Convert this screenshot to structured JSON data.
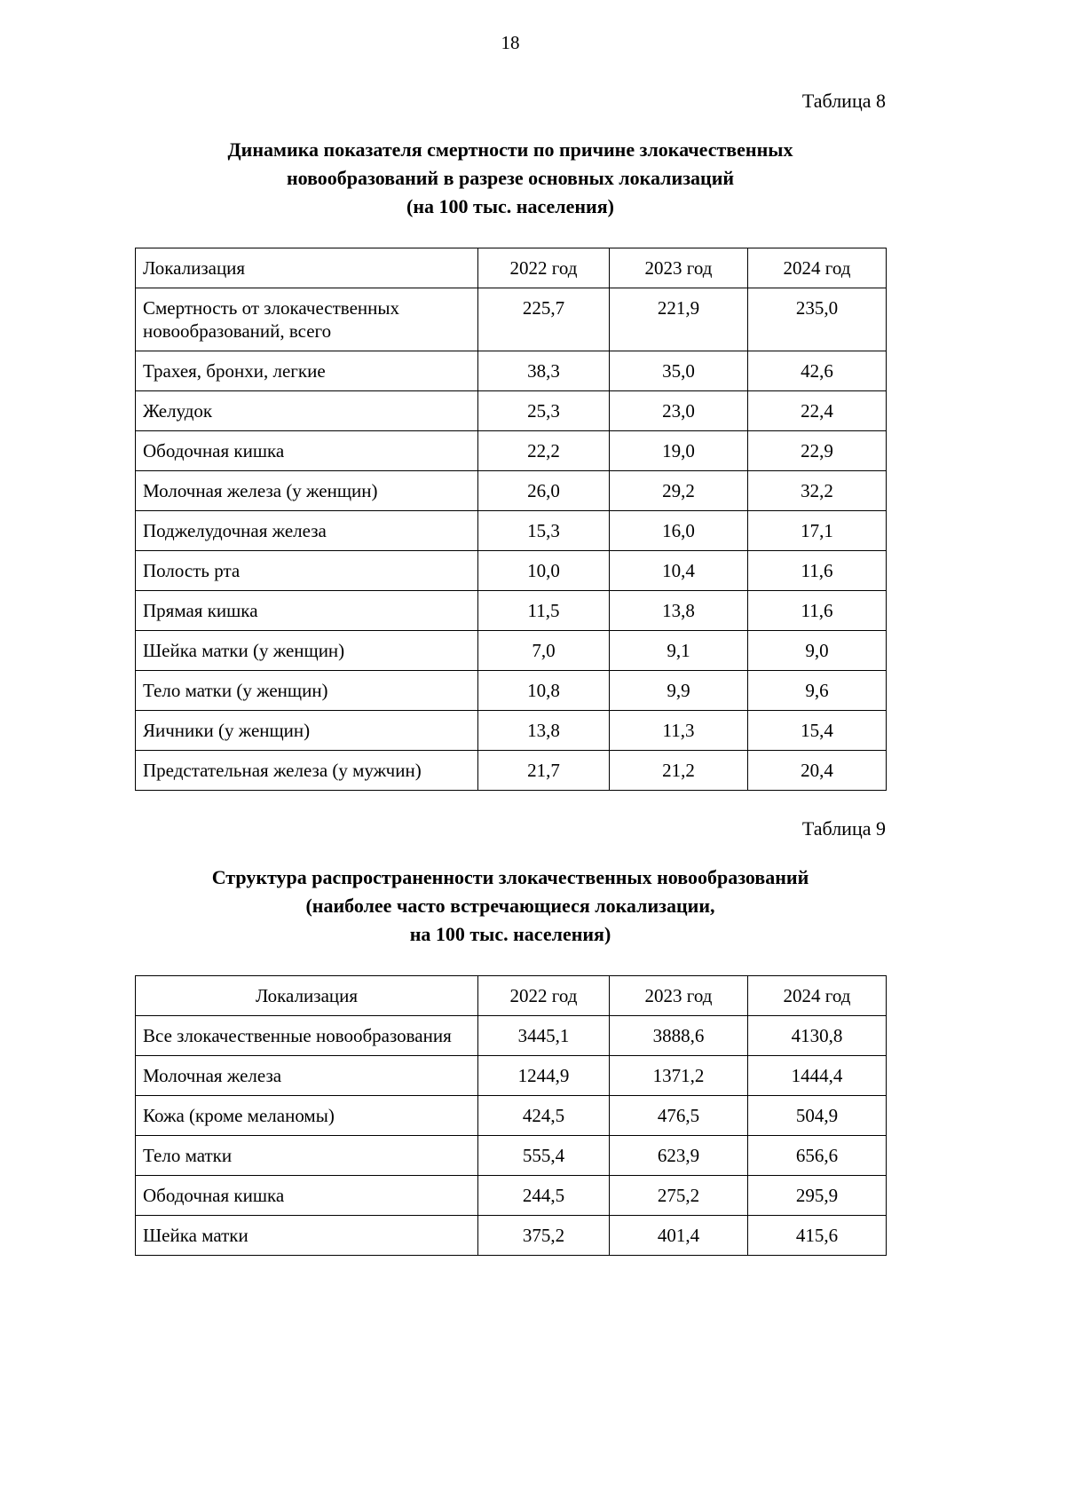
{
  "page": {
    "number": "18"
  },
  "table8": {
    "label": "Таблица 8",
    "title_lines": [
      "Динамика показателя смертности по причине злокачественных",
      "новообразований в разрезе основных локализаций",
      "(на 100 тыс. населения)"
    ],
    "headers": [
      "Локализация",
      "2022 год",
      "2023 год",
      "2024 год"
    ],
    "rows": [
      {
        "label": "Смертность от злокачественных новообразований, всего",
        "values": [
          "225,7",
          "221,9",
          "235,0"
        ]
      },
      {
        "label": "Трахея, бронхи, легкие",
        "values": [
          "38,3",
          "35,0",
          "42,6"
        ]
      },
      {
        "label": "Желудок",
        "values": [
          "25,3",
          "23,0",
          "22,4"
        ]
      },
      {
        "label": "Ободочная кишка",
        "values": [
          "22,2",
          "19,0",
          "22,9"
        ]
      },
      {
        "label": "Молочная железа (у женщин)",
        "values": [
          "26,0",
          "29,2",
          "32,2"
        ]
      },
      {
        "label": "Поджелудочная железа",
        "values": [
          "15,3",
          "16,0",
          "17,1"
        ]
      },
      {
        "label": "Полость рта",
        "values": [
          "10,0",
          "10,4",
          "11,6"
        ]
      },
      {
        "label": "Прямая кишка",
        "values": [
          "11,5",
          "13,8",
          "11,6"
        ]
      },
      {
        "label": "Шейка матки (у женщин)",
        "values": [
          "7,0",
          "9,1",
          "9,0"
        ]
      },
      {
        "label": "Тело матки (у женщин)",
        "values": [
          "10,8",
          "9,9",
          "9,6"
        ]
      },
      {
        "label": "Яичники (у женщин)",
        "values": [
          "13,8",
          "11,3",
          "15,4"
        ]
      },
      {
        "label": "Предстательная железа (у мужчин)",
        "values": [
          "21,7",
          "21,2",
          "20,4"
        ]
      }
    ]
  },
  "table9": {
    "label": "Таблица 9",
    "title_lines": [
      "Структура распространенности злокачественных новообразований",
      "(наиболее часто встречающиеся локализации,",
      "на 100 тыс. населения)"
    ],
    "headers": [
      "Локализация",
      "2022 год",
      "2023 год",
      "2024 год"
    ],
    "rows": [
      {
        "label": "Все злокачественные новообразования",
        "values": [
          "3445,1",
          "3888,6",
          "4130,8"
        ]
      },
      {
        "label": "Молочная железа",
        "values": [
          "1244,9",
          "1371,2",
          "1444,4"
        ]
      },
      {
        "label": "Кожа (кроме меланомы)",
        "values": [
          "424,5",
          "476,5",
          "504,9"
        ]
      },
      {
        "label": "Тело матки",
        "values": [
          "555,4",
          "623,9",
          "656,6"
        ]
      },
      {
        "label": "Ободочная кишка",
        "values": [
          "244,5",
          "275,2",
          "295,9"
        ]
      },
      {
        "label": "Шейка матки",
        "values": [
          "375,2",
          "401,4",
          "415,6"
        ]
      }
    ]
  }
}
